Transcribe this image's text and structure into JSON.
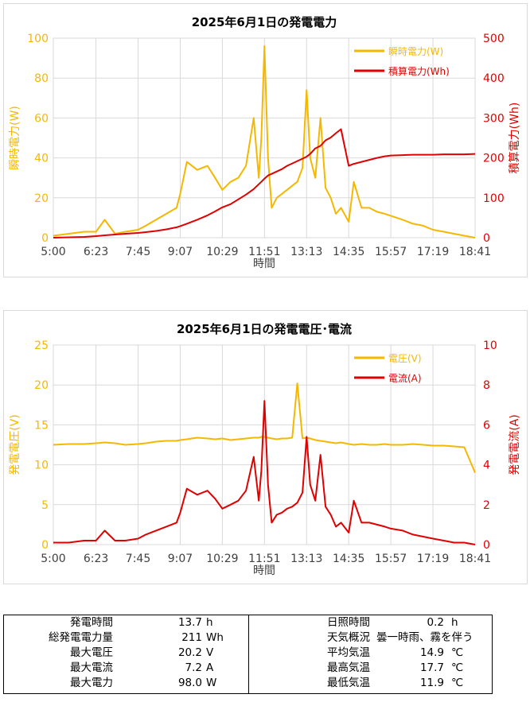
{
  "chart_data": [
    {
      "type": "line",
      "title": "2025年6月1日の発電電力",
      "xlabel": "時間",
      "ylabel_left": "瞬時電力(W)",
      "ylabel_right": "積算電力(Wh)",
      "x_ticks": [
        "5:00",
        "6:23",
        "7:45",
        "9:07",
        "10:29",
        "11:51",
        "13:13",
        "14:35",
        "15:57",
        "17:19",
        "18:41"
      ],
      "xlim": [
        "5:00",
        "18:41"
      ],
      "ylim_left": [
        0,
        100
      ],
      "yticks_left": [
        0,
        20,
        40,
        60,
        80,
        100
      ],
      "ylim_right": [
        0,
        500
      ],
      "yticks_right": [
        0,
        100,
        200,
        300,
        400,
        500
      ],
      "grid": true,
      "legend": "top-right",
      "x": [
        "5:00",
        "5:30",
        "6:00",
        "6:23",
        "6:40",
        "7:00",
        "7:20",
        "7:45",
        "8:00",
        "8:20",
        "8:40",
        "9:00",
        "9:07",
        "9:20",
        "9:40",
        "10:00",
        "10:15",
        "10:29",
        "10:45",
        "11:00",
        "11:15",
        "11:30",
        "11:40",
        "11:45",
        "11:51",
        "11:58",
        "12:05",
        "12:15",
        "12:25",
        "12:35",
        "12:45",
        "12:55",
        "13:05",
        "13:13",
        "13:20",
        "13:30",
        "13:40",
        "13:50",
        "14:00",
        "14:10",
        "14:20",
        "14:35",
        "14:45",
        "15:00",
        "15:15",
        "15:30",
        "15:45",
        "15:57",
        "16:20",
        "16:40",
        "17:00",
        "17:19",
        "17:40",
        "18:00",
        "18:20",
        "18:41"
      ],
      "series": [
        {
          "name": "瞬時電力(W)",
          "axis": "left",
          "color": "#F5B800",
          "values": [
            1,
            2,
            3,
            3,
            9,
            2,
            3,
            4,
            6,
            9,
            12,
            15,
            22,
            38,
            34,
            36,
            30,
            24,
            28,
            30,
            36,
            60,
            30,
            50,
            96,
            40,
            15,
            20,
            22,
            24,
            26,
            28,
            35,
            74,
            40,
            30,
            60,
            25,
            20,
            12,
            15,
            8,
            28,
            15,
            15,
            13,
            12,
            11,
            9,
            7,
            6,
            4,
            3,
            2,
            1,
            0
          ]
        },
        {
          "name": "積算電力(Wh)",
          "axis": "right",
          "color": "#E00000",
          "values": [
            0,
            1,
            2,
            4,
            6,
            8,
            10,
            12,
            14,
            17,
            21,
            26,
            29,
            35,
            45,
            56,
            66,
            76,
            84,
            96,
            108,
            122,
            134,
            140,
            148,
            156,
            160,
            166,
            172,
            180,
            186,
            192,
            198,
            203,
            210,
            224,
            230,
            244,
            251,
            262,
            272,
            180,
            185,
            190,
            195,
            200,
            204,
            206,
            207,
            208,
            208,
            208,
            209,
            209,
            209,
            210
          ]
        }
      ]
    },
    {
      "type": "line",
      "title": "2025年6月1日の発電電圧･電流",
      "xlabel": "時間",
      "ylabel_left": "発電電圧(V)",
      "ylabel_right": "発電電流(A)",
      "x_ticks": [
        "5:00",
        "6:23",
        "7:45",
        "9:07",
        "10:29",
        "11:51",
        "13:13",
        "14:35",
        "15:57",
        "17:19",
        "18:41"
      ],
      "xlim": [
        "5:00",
        "18:41"
      ],
      "ylim_left": [
        0,
        25
      ],
      "yticks_left": [
        0,
        5,
        10,
        15,
        20,
        25
      ],
      "ylim_right": [
        0,
        10
      ],
      "yticks_right": [
        0,
        2,
        4,
        6,
        8,
        10
      ],
      "grid": true,
      "legend": "top-right",
      "x": [
        "5:00",
        "5:30",
        "6:00",
        "6:23",
        "6:40",
        "7:00",
        "7:20",
        "7:45",
        "8:00",
        "8:20",
        "8:40",
        "9:00",
        "9:07",
        "9:20",
        "9:40",
        "10:00",
        "10:15",
        "10:29",
        "10:45",
        "11:00",
        "11:15",
        "11:30",
        "11:40",
        "11:45",
        "11:51",
        "11:58",
        "12:05",
        "12:15",
        "12:25",
        "12:35",
        "12:45",
        "12:55",
        "13:05",
        "13:13",
        "13:20",
        "13:30",
        "13:40",
        "13:50",
        "14:00",
        "14:10",
        "14:20",
        "14:35",
        "14:45",
        "15:00",
        "15:15",
        "15:30",
        "15:45",
        "15:57",
        "16:20",
        "16:40",
        "17:00",
        "17:19",
        "17:40",
        "18:00",
        "18:20",
        "18:41"
      ],
      "series": [
        {
          "name": "電圧(V)",
          "axis": "left",
          "color": "#F5B800",
          "values": [
            12.5,
            12.6,
            12.6,
            12.7,
            12.8,
            12.7,
            12.5,
            12.6,
            12.7,
            12.9,
            13.0,
            13.0,
            13.1,
            13.2,
            13.4,
            13.3,
            13.2,
            13.3,
            13.1,
            13.2,
            13.3,
            13.4,
            13.4,
            13.5,
            13.5,
            13.4,
            13.3,
            13.2,
            13.3,
            13.3,
            13.4,
            20.2,
            13.3,
            13.4,
            13.3,
            13.1,
            13.0,
            12.9,
            12.8,
            12.7,
            12.8,
            12.6,
            12.5,
            12.6,
            12.5,
            12.5,
            12.6,
            12.5,
            12.5,
            12.6,
            12.5,
            12.4,
            12.4,
            12.3,
            12.2,
            9.0
          ]
        },
        {
          "name": "電流(A)",
          "axis": "right",
          "color": "#E00000",
          "values": [
            0.1,
            0.1,
            0.2,
            0.2,
            0.7,
            0.2,
            0.2,
            0.3,
            0.5,
            0.7,
            0.9,
            1.1,
            1.6,
            2.8,
            2.5,
            2.7,
            2.3,
            1.8,
            2.0,
            2.2,
            2.7,
            4.4,
            2.2,
            3.7,
            7.2,
            3.0,
            1.1,
            1.5,
            1.6,
            1.8,
            1.9,
            2.1,
            2.6,
            5.4,
            3.0,
            2.2,
            4.5,
            1.9,
            1.5,
            0.9,
            1.1,
            0.6,
            2.2,
            1.1,
            1.1,
            1.0,
            0.9,
            0.8,
            0.7,
            0.5,
            0.4,
            0.3,
            0.2,
            0.1,
            0.1,
            0.0
          ]
        }
      ]
    }
  ],
  "summary": {
    "left": [
      {
        "label": "発電時間",
        "value": "13.7",
        "unit": "h"
      },
      {
        "label": "総発電電力量",
        "value": "211",
        "unit": "Wh"
      },
      {
        "label": "最大電圧",
        "value": "20.2",
        "unit": "V"
      },
      {
        "label": "最大電流",
        "value": "7.2",
        "unit": "A"
      },
      {
        "label": "最大電力",
        "value": "98.0",
        "unit": "W"
      }
    ],
    "right": [
      {
        "label": "日照時間",
        "value": "0.2",
        "unit": "h"
      },
      {
        "label": "天気概況",
        "value": "曇一時雨、霧を伴う",
        "unit": ""
      },
      {
        "label": "平均気温",
        "value": "14.9",
        "unit": "℃"
      },
      {
        "label": "最高気温",
        "value": "17.7",
        "unit": "℃"
      },
      {
        "label": "最低気温",
        "value": "11.9",
        "unit": "℃"
      }
    ]
  }
}
